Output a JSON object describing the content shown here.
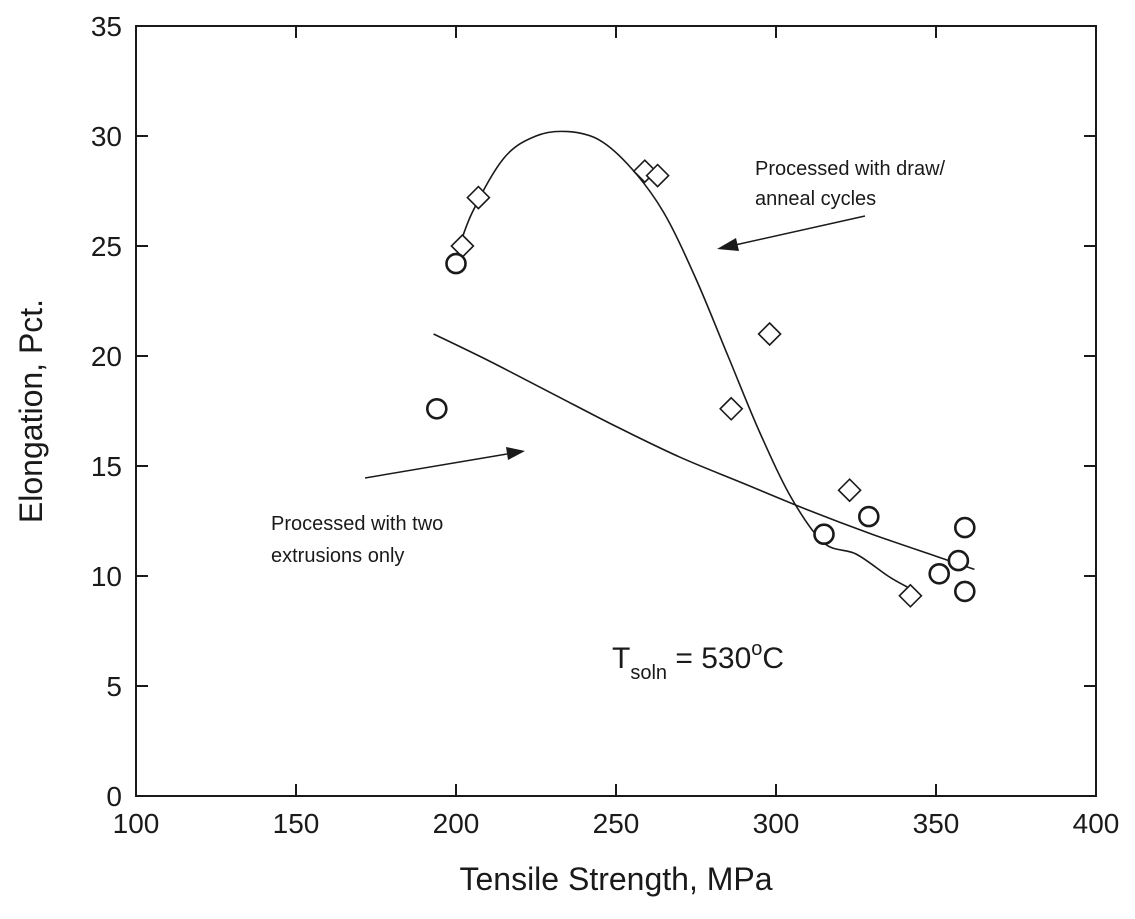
{
  "chart_data": {
    "type": "scatter",
    "xlabel": "Tensile Strength, MPa",
    "ylabel": "Elongation, Pct.",
    "xlim": [
      100,
      400
    ],
    "ylim": [
      0,
      35
    ],
    "xticks": [
      100,
      150,
      200,
      250,
      300,
      350,
      400
    ],
    "yticks": [
      0,
      5,
      10,
      15,
      20,
      25,
      30,
      35
    ],
    "grid": false,
    "series": [
      {
        "marker": "diamond",
        "points": [
          [
            202,
            25.0
          ],
          [
            207,
            27.2
          ],
          [
            259,
            28.4
          ],
          [
            263,
            28.2
          ],
          [
            286,
            17.6
          ],
          [
            298,
            21.0
          ],
          [
            323,
            13.9
          ],
          [
            342,
            9.1
          ]
        ],
        "fit_curve": [
          [
            200,
            24.5
          ],
          [
            205,
            26.5
          ],
          [
            215,
            29.0
          ],
          [
            225,
            30.0
          ],
          [
            235,
            30.2
          ],
          [
            245,
            29.8
          ],
          [
            255,
            28.5
          ],
          [
            265,
            26.5
          ],
          [
            275,
            23.5
          ],
          [
            285,
            20.0
          ],
          [
            295,
            16.5
          ],
          [
            305,
            13.5
          ],
          [
            315,
            11.5
          ],
          [
            325,
            11.0
          ],
          [
            335,
            10.0
          ],
          [
            341,
            9.5
          ]
        ]
      },
      {
        "marker": "circle",
        "points": [
          [
            194,
            17.6
          ],
          [
            200,
            24.2
          ],
          [
            315,
            11.9
          ],
          [
            329,
            12.7
          ],
          [
            351,
            10.1
          ],
          [
            357,
            10.7
          ],
          [
            359,
            12.2
          ],
          [
            359,
            9.3
          ]
        ],
        "fit_curve": [
          [
            193,
            21.0
          ],
          [
            210,
            19.8
          ],
          [
            230,
            18.3
          ],
          [
            250,
            16.8
          ],
          [
            270,
            15.4
          ],
          [
            290,
            14.2
          ],
          [
            310,
            13.0
          ],
          [
            330,
            11.9
          ],
          [
            350,
            10.9
          ],
          [
            362,
            10.3
          ]
        ]
      }
    ],
    "annotations": [
      {
        "id": "draw",
        "text_lines": [
          "Processed with draw/",
          "anneal cycles"
        ]
      },
      {
        "id": "two",
        "text_lines": [
          "Processed with two",
          "extrusions only"
        ]
      }
    ],
    "tsoln": {
      "main": "T",
      "sub": "soln",
      "rest": " = 530",
      "deg": "o",
      "unit": "C"
    }
  }
}
